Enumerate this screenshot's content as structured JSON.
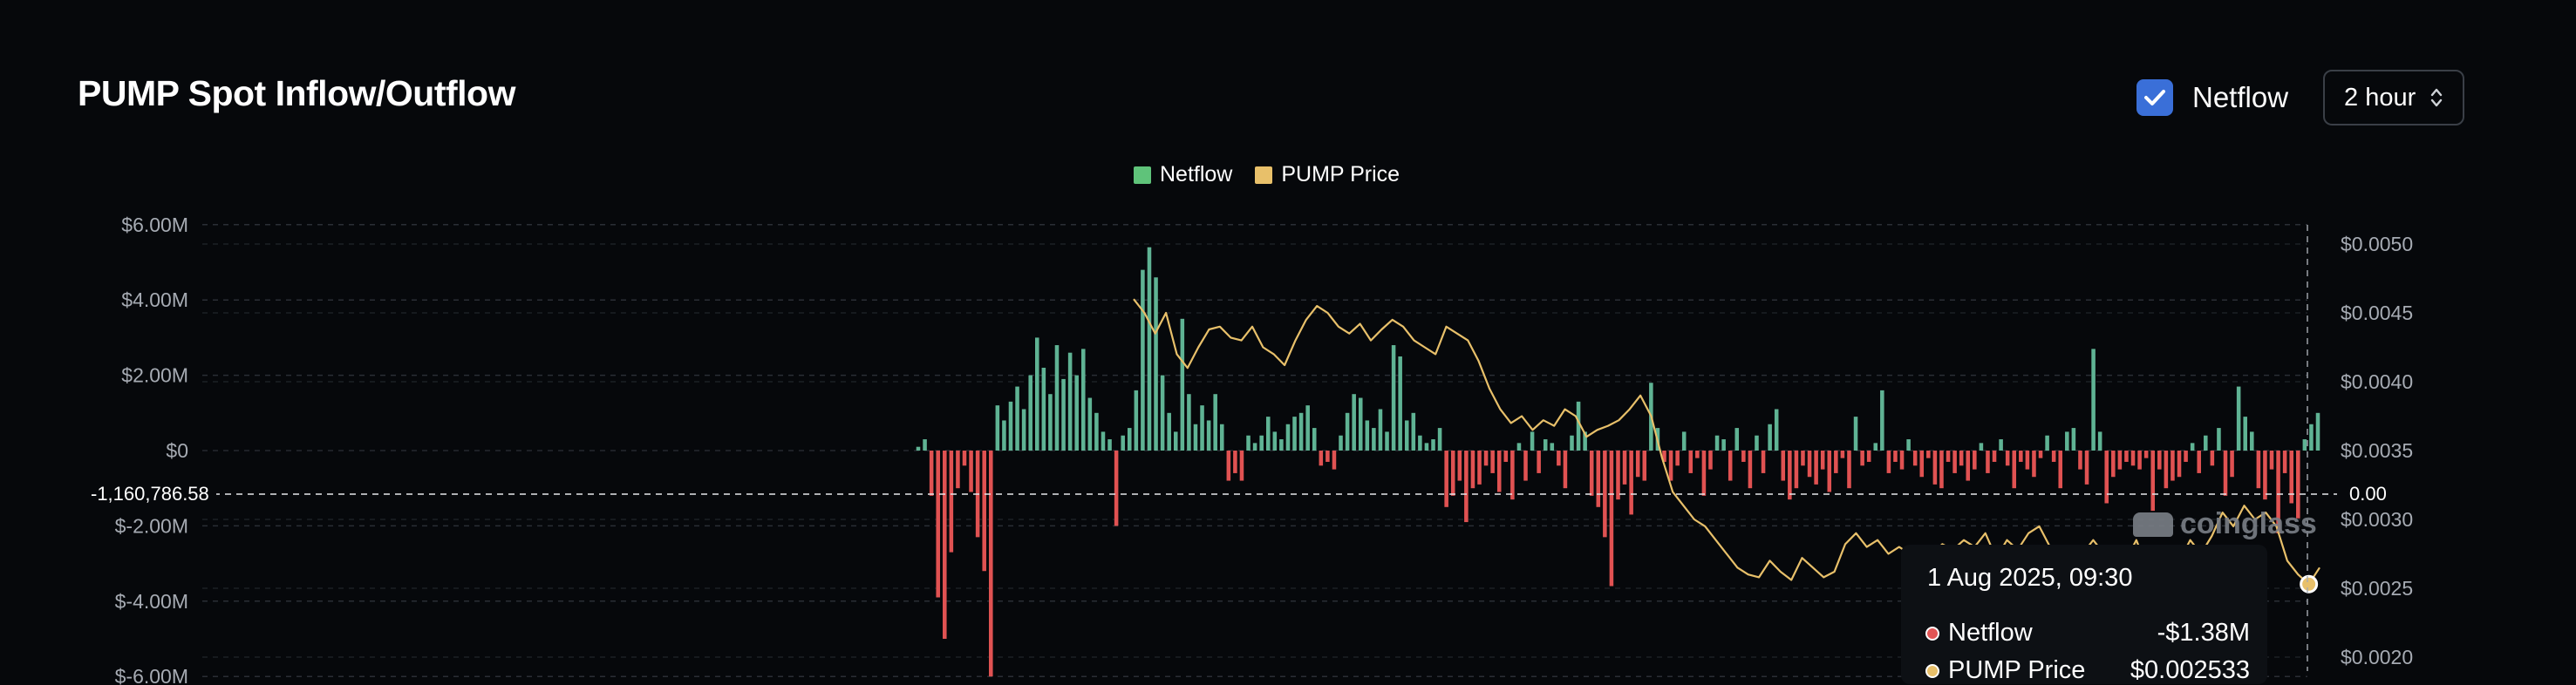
{
  "header": {
    "title": "PUMP Spot Inflow/Outflow",
    "netflow_checkbox_label": "Netflow",
    "netflow_checked": true,
    "interval_select": "2 hour"
  },
  "tooltip": {
    "date": "1 Aug 2025, 09:30",
    "rows": [
      {
        "name": "Netflow",
        "value": "-$1.38M",
        "dot_color": "#e25555"
      },
      {
        "name": "PUMP Price",
        "value": "$0.002533",
        "dot_color": "#e8c06a"
      }
    ]
  },
  "crosshair": {
    "left_value": "-1,160,786.58",
    "right_value": "0.00"
  },
  "watermark": "coinglass",
  "colors": {
    "positive": "#5fb394",
    "negative": "#e05252",
    "price": "#e8c06a",
    "legend_netflow": "#5fc37a"
  },
  "chart_data": {
    "type": "bar",
    "title": "PUMP Spot Inflow/Outflow",
    "legend": [
      {
        "name": "Netflow",
        "color": "#5fc37a"
      },
      {
        "name": "PUMP Price",
        "color": "#e8c06a"
      }
    ],
    "left_axis": {
      "ticks": [
        "$6.00M",
        "$4.00M",
        "$2.00M",
        "$0",
        "$-2.00M",
        "$-4.00M",
        "$-6.00M"
      ],
      "range": [
        -6000000,
        6000000
      ]
    },
    "right_axis": {
      "ticks": [
        "$0.0050",
        "$0.0045",
        "$0.0040",
        "$0.0035",
        "$0.0030",
        "$0.0025",
        "$0.0020"
      ],
      "range": [
        0.002,
        0.005
      ]
    },
    "series": [
      {
        "name": "Netflow",
        "type": "bar",
        "values": [
          0.1,
          0.3,
          -1.2,
          -3.9,
          -5.0,
          -2.7,
          -1.0,
          -0.4,
          -1.1,
          -2.3,
          -3.2,
          -6.0,
          1.2,
          0.8,
          1.3,
          1.7,
          1.1,
          2.0,
          3.0,
          2.2,
          1.5,
          2.8,
          1.9,
          2.6,
          2.0,
          2.7,
          1.4,
          1.0,
          0.5,
          0.3,
          -2.0,
          0.4,
          0.6,
          1.6,
          4.8,
          5.4,
          4.6,
          2.0,
          1.0,
          0.5,
          3.5,
          1.5,
          0.7,
          1.2,
          0.8,
          1.5,
          0.7,
          -0.8,
          -0.6,
          -0.8,
          0.4,
          0.2,
          0.4,
          0.9,
          0.5,
          0.3,
          0.7,
          0.9,
          1.0,
          1.2,
          0.6,
          -0.4,
          -0.3,
          -0.5,
          0.4,
          1.0,
          1.5,
          1.4,
          0.8,
          0.6,
          1.1,
          0.5,
          2.8,
          2.5,
          0.8,
          1.0,
          0.4,
          0.2,
          0.3,
          0.6,
          -1.5,
          -1.2,
          -0.8,
          -1.9,
          -1.0,
          -0.9,
          -0.4,
          -0.6,
          -1.1,
          -0.3,
          -1.3,
          0.2,
          -0.8,
          0.5,
          -0.6,
          0.3,
          0.2,
          -0.4,
          -1.0,
          0.4,
          1.3,
          0.5,
          -1.2,
          -1.5,
          -2.3,
          -3.6,
          -1.3,
          -0.9,
          -1.7,
          -0.7,
          -0.8,
          1.8,
          0.6,
          -0.3,
          -0.8,
          -0.4,
          0.5,
          -0.6,
          -0.2,
          -1.2,
          -0.5,
          0.4,
          0.3,
          -0.8,
          0.6,
          -0.3,
          -1.0,
          0.4,
          -0.6,
          0.7,
          1.1,
          -0.8,
          -1.3,
          -1.0,
          -0.4,
          -0.7,
          -0.9,
          -0.5,
          -1.1,
          -0.6,
          -0.2,
          -1.0,
          0.9,
          -0.4,
          -0.3,
          0.2,
          1.6,
          -0.6,
          -0.3,
          -0.5,
          0.3,
          -0.4,
          -0.7,
          -0.2,
          -0.9,
          -1.0,
          -0.3,
          -0.6,
          -0.4,
          -0.8,
          -0.5,
          0.2,
          -0.6,
          -0.3,
          0.3,
          -0.4,
          -1.0,
          -0.3,
          -0.5,
          -0.7,
          -0.2,
          0.4,
          -0.3,
          -1.0,
          0.5,
          0.6,
          -0.5,
          -0.9,
          2.7,
          0.5,
          -1.4,
          -0.7,
          -0.5,
          -0.3,
          -0.4,
          -0.5,
          -0.2,
          -1.6,
          -0.5,
          -1.0,
          -0.8,
          -0.7,
          -0.3,
          0.2,
          -0.6,
          0.4,
          -0.4,
          0.6,
          -1.2,
          -0.7,
          1.7,
          0.9,
          0.5,
          -1.0,
          -1.3,
          -0.5,
          -2.2,
          -0.6,
          -1.4,
          -1.8,
          0.3,
          0.7,
          1.0
        ]
      },
      {
        "name": "PUMP Price",
        "type": "line",
        "values": [
          0.0046,
          0.0045,
          0.00435,
          0.0045,
          0.0042,
          0.0041,
          0.00425,
          0.00438,
          0.0044,
          0.00432,
          0.0043,
          0.0044,
          0.00425,
          0.0042,
          0.00412,
          0.0043,
          0.00445,
          0.00455,
          0.0045,
          0.0044,
          0.00435,
          0.00442,
          0.0043,
          0.00438,
          0.00445,
          0.0044,
          0.0043,
          0.00425,
          0.0042,
          0.0044,
          0.00435,
          0.0043,
          0.00415,
          0.00395,
          0.0038,
          0.0037,
          0.00375,
          0.00365,
          0.00372,
          0.00368,
          0.0038,
          0.00375,
          0.0036,
          0.00365,
          0.00368,
          0.00372,
          0.0038,
          0.0039,
          0.00375,
          0.00345,
          0.0032,
          0.0031,
          0.003,
          0.00295,
          0.00285,
          0.00275,
          0.00265,
          0.0026,
          0.00258,
          0.0027,
          0.00262,
          0.00256,
          0.00272,
          0.00265,
          0.00258,
          0.00262,
          0.00282,
          0.0029,
          0.0028,
          0.00285,
          0.00275,
          0.0028,
          0.00275,
          0.0027,
          0.00275,
          0.00282,
          0.00278,
          0.00285,
          0.0028,
          0.0029,
          0.00272,
          0.00285,
          0.00278,
          0.0029,
          0.00295,
          0.0028,
          0.0027,
          0.00262,
          0.00275,
          0.00285,
          0.00275,
          0.00265,
          0.0027,
          0.00285,
          0.00265,
          0.00255,
          0.00262,
          0.0027,
          0.00285,
          0.00275,
          0.00288,
          0.00305,
          0.00295,
          0.0031,
          0.003,
          0.00305,
          0.00295,
          0.0027,
          0.0026,
          0.00253,
          0.00265
        ]
      }
    ]
  }
}
